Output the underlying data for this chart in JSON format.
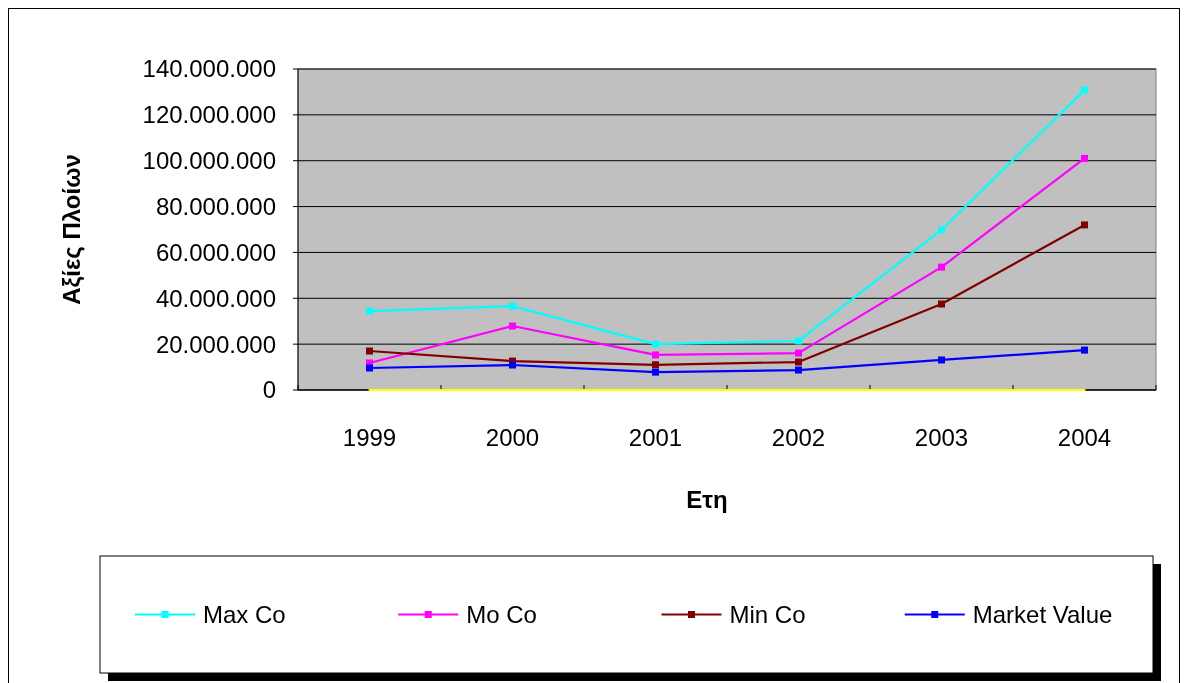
{
  "chart_data": {
    "type": "line",
    "xlabel": "Ετη",
    "ylabel": "Αξίες Πλοίων",
    "categories": [
      "1999",
      "2000",
      "2001",
      "2002",
      "2003",
      "2004"
    ],
    "series": [
      {
        "name": "Max Co",
        "color": "#00ffff",
        "values": [
          34400000,
          36600000,
          20000000,
          21400000,
          69800000,
          130800000
        ]
      },
      {
        "name": "Mo Co",
        "color": "#ff00ff",
        "values": [
          11800000,
          27900000,
          15300000,
          16100000,
          53600000,
          101000000
        ]
      },
      {
        "name": "Min Co",
        "color": "#800000",
        "values": [
          17000000,
          12600000,
          11000000,
          12200000,
          37500000,
          72000000
        ]
      },
      {
        "name": "Market Value",
        "color": "#0000ff",
        "values": [
          9600000,
          10900000,
          7800000,
          8700000,
          13100000,
          17400000
        ]
      },
      {
        "color": "#ffff00",
        "values": [
          0,
          0,
          0,
          0,
          0,
          0
        ],
        "marker": "none"
      }
    ],
    "ylim": [
      0,
      140000000
    ],
    "yticks": [
      0,
      {
        "value": 20000000,
        "label": "20.000.000"
      },
      {
        "value": 40000000,
        "label": "40.000.000"
      },
      {
        "value": 60000000,
        "label": "60.000.000"
      },
      {
        "value": 80000000,
        "label": "80.000.000"
      },
      {
        "value": 100000000,
        "label": "100.000.000"
      },
      {
        "value": 120000000,
        "label": "120.000.000"
      },
      {
        "value": 140000000,
        "label": "140.000.000"
      }
    ],
    "grid": "y",
    "legend": "bottom",
    "marker": "square",
    "line_style": "solid"
  }
}
